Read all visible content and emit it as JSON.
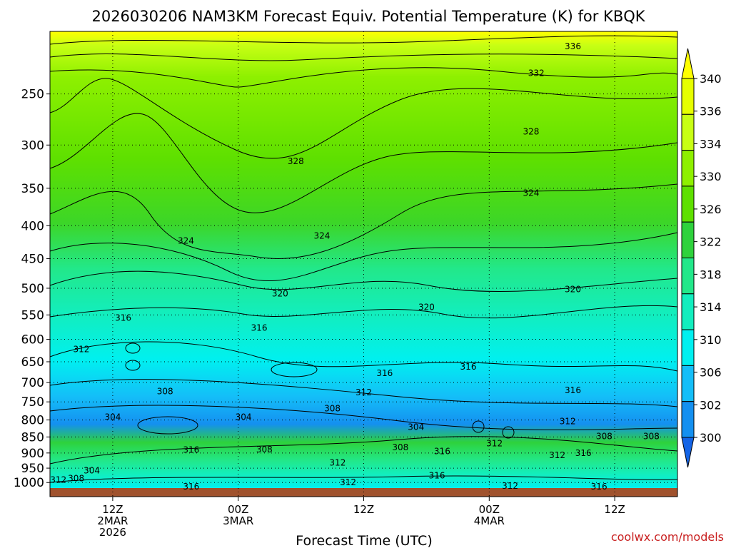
{
  "chart_data": {
    "type": "contour",
    "title": "2026030206 NAM3KM Forecast Equiv. Potential Temperature (K) for KBQK",
    "xlabel": "Forecast Time (UTC)",
    "ylabel": "",
    "credit": "coolwx.com/models",
    "x_ticks": [
      {
        "hour": 6,
        "lines": [
          "12Z",
          "2MAR",
          "2026"
        ]
      },
      {
        "hour": 18,
        "lines": [
          "00Z",
          "3MAR"
        ]
      },
      {
        "hour": 30,
        "lines": [
          "12Z"
        ]
      },
      {
        "hour": 42,
        "lines": [
          "00Z",
          "4MAR"
        ]
      },
      {
        "hour": 54,
        "lines": [
          "12Z"
        ]
      }
    ],
    "xlim": [
      0,
      60
    ],
    "y_ticks": [
      250,
      300,
      350,
      400,
      450,
      500,
      550,
      600,
      650,
      700,
      750,
      800,
      850,
      900,
      950,
      1000
    ],
    "ylim_hPa": [
      200,
      1020
    ],
    "y_scale": "log",
    "grid": true,
    "colorbar": {
      "labels": [
        340,
        336,
        334,
        330,
        326,
        322,
        318,
        314,
        310,
        306,
        302,
        300
      ],
      "colors": [
        "#ffff00",
        "#e6ff00",
        "#c8ff14",
        "#8ef000",
        "#5ee000",
        "#2ed23c",
        "#22e88a",
        "#12eebe",
        "#00f0f0",
        "#14bef8",
        "#1490f0",
        "#1464e6"
      ]
    },
    "contour_labels": [
      {
        "text": "336",
        "hour": 50.0,
        "p": 211
      },
      {
        "text": "332",
        "hour": 46.5,
        "p": 232
      },
      {
        "text": "328",
        "hour": 46.0,
        "p": 286
      },
      {
        "text": "328",
        "hour": 23.5,
        "p": 318
      },
      {
        "text": "324",
        "hour": 46.0,
        "p": 356
      },
      {
        "text": "324",
        "hour": 13.0,
        "p": 422
      },
      {
        "text": "324",
        "hour": 26.0,
        "p": 415
      },
      {
        "text": "320",
        "hour": 22.0,
        "p": 510
      },
      {
        "text": "320",
        "hour": 36.0,
        "p": 535
      },
      {
        "text": "320",
        "hour": 50.0,
        "p": 502
      },
      {
        "text": "316",
        "hour": 7.0,
        "p": 556
      },
      {
        "text": "316",
        "hour": 20.0,
        "p": 576
      },
      {
        "text": "316",
        "hour": 32.0,
        "p": 677
      },
      {
        "text": "316",
        "hour": 40.0,
        "p": 662
      },
      {
        "text": "316",
        "hour": 50.0,
        "p": 720
      },
      {
        "text": "312",
        "hour": 3.0,
        "p": 622
      },
      {
        "text": "312",
        "hour": 30.0,
        "p": 725
      },
      {
        "text": "312",
        "hour": 49.5,
        "p": 804
      },
      {
        "text": "312",
        "hour": 27.5,
        "p": 932
      },
      {
        "text": "312",
        "hour": 28.5,
        "p": 1000
      },
      {
        "text": "312",
        "hour": 0.8,
        "p": 990
      },
      {
        "text": "312",
        "hour": 42.5,
        "p": 870
      },
      {
        "text": "312",
        "hour": 48.5,
        "p": 907
      },
      {
        "text": "312",
        "hour": 44.0,
        "p": 1012
      },
      {
        "text": "308",
        "hour": 11.0,
        "p": 722
      },
      {
        "text": "308",
        "hour": 27.0,
        "p": 768
      },
      {
        "text": "308",
        "hour": 2.5,
        "p": 985
      },
      {
        "text": "308",
        "hour": 20.5,
        "p": 889
      },
      {
        "text": "308",
        "hour": 33.5,
        "p": 882
      },
      {
        "text": "308",
        "hour": 53.0,
        "p": 848
      },
      {
        "text": "308",
        "hour": 57.5,
        "p": 848
      },
      {
        "text": "304",
        "hour": 6.0,
        "p": 792
      },
      {
        "text": "304",
        "hour": 18.5,
        "p": 792
      },
      {
        "text": "304",
        "hour": 35.0,
        "p": 820
      },
      {
        "text": "304",
        "hour": 4.0,
        "p": 958
      },
      {
        "text": "316",
        "hour": 13.5,
        "p": 890
      },
      {
        "text": "316",
        "hour": 37.5,
        "p": 895
      },
      {
        "text": "316",
        "hour": 37.0,
        "p": 975
      },
      {
        "text": "316",
        "hour": 51.0,
        "p": 900
      },
      {
        "text": "316",
        "hour": 13.5,
        "p": 1015
      },
      {
        "text": "316",
        "hour": 52.5,
        "p": 1015
      }
    ]
  }
}
